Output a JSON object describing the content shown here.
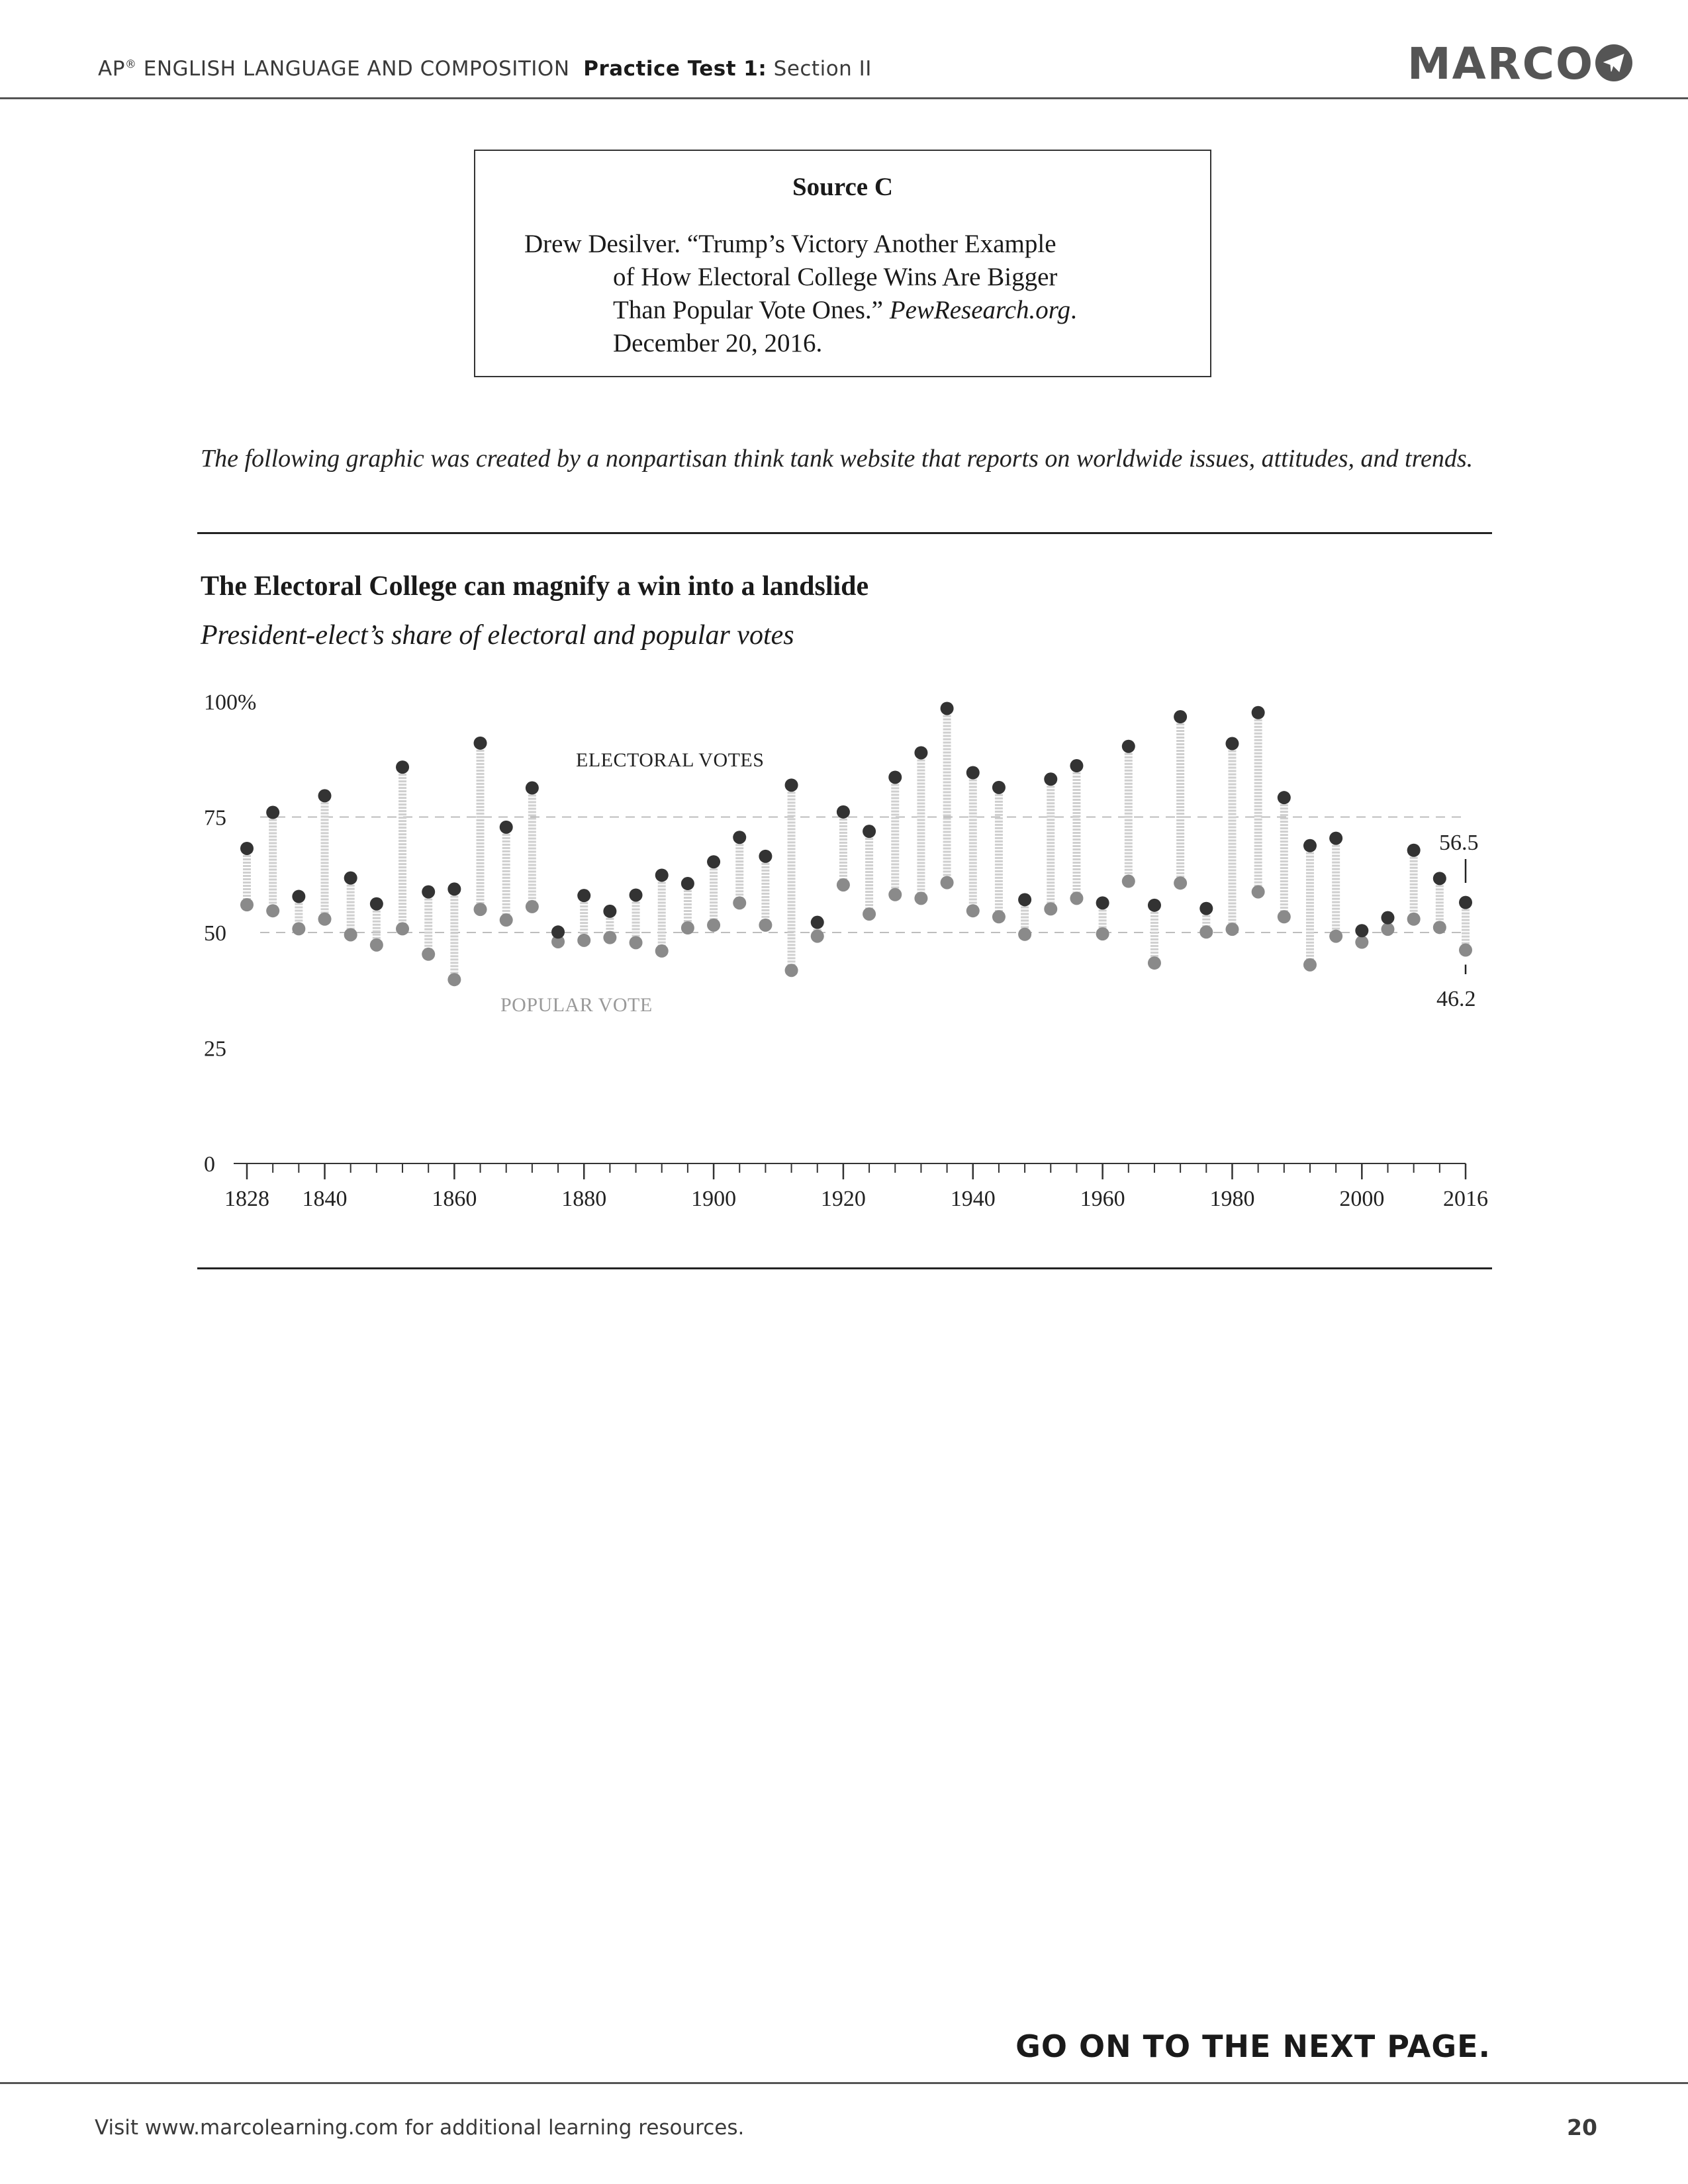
{
  "header": {
    "course_prefix": "AP",
    "registered_mark": "®",
    "course_rest": " ENGLISH LANGUAGE AND COMPOSITION",
    "test_label": "Practice Test 1:",
    "section": " Section II",
    "logo": "MARCO",
    "logo_icon": "paper-plane-icon"
  },
  "source": {
    "title": "Source C",
    "line1": "Drew Desilver. “Trump’s Victory Another Example",
    "line2": "of How Electoral College Wins Are Bigger",
    "line3_plain": "Than Popular Vote Ones.” ",
    "line3_italic": "PewResearch.org",
    "line3_end": ".",
    "line4": "December 20, 2016."
  },
  "intro": "The following graphic was created by a nonpartisan think tank website that reports on worldwide issues, attitudes, and trends.",
  "chart_data": {
    "type": "scatter",
    "title": "The Electoral College can magnify a win into a landslide",
    "subtitle": "President-elect’s share of electoral and popular votes",
    "y_tick_labels": [
      "100%",
      "75",
      "50",
      "25",
      "0"
    ],
    "y_ticks": [
      100,
      75,
      50,
      25,
      0
    ],
    "x_tick_labels": [
      "1828",
      "1840",
      "1860",
      "1880",
      "1900",
      "1920",
      "1940",
      "1960",
      "1980",
      "2000",
      "2016"
    ],
    "x_ticks": [
      1828,
      1840,
      1860,
      1880,
      1900,
      1920,
      1940,
      1960,
      1980,
      2000,
      2016
    ],
    "ylim": [
      0,
      100
    ],
    "xlim": [
      1828,
      2016
    ],
    "reference_lines": [
      75,
      50
    ],
    "series_labels": [
      "ELECTORAL VOTES",
      "POPULAR VOTE"
    ],
    "annotations": [
      "56.5",
      "46.2"
    ],
    "colors": {
      "electoral": "#333333",
      "popular": "#8a8a8a",
      "connector": "#cfcfcf"
    },
    "years": [
      1828,
      1832,
      1836,
      1840,
      1844,
      1848,
      1852,
      1856,
      1860,
      1864,
      1868,
      1872,
      1876,
      1880,
      1884,
      1888,
      1892,
      1896,
      1900,
      1904,
      1908,
      1912,
      1916,
      1920,
      1924,
      1928,
      1932,
      1936,
      1940,
      1944,
      1948,
      1952,
      1956,
      1960,
      1964,
      1968,
      1972,
      1976,
      1980,
      1984,
      1988,
      1992,
      1996,
      2000,
      2004,
      2008,
      2012,
      2016
    ],
    "series": [
      {
        "name": "ELECTORAL VOTES",
        "values": [
          68.2,
          76.0,
          57.8,
          79.6,
          61.8,
          56.2,
          85.8,
          58.8,
          59.4,
          91.0,
          72.8,
          81.3,
          50.1,
          58.0,
          54.6,
          58.1,
          62.4,
          60.6,
          65.3,
          70.6,
          66.5,
          81.9,
          52.2,
          76.1,
          71.9,
          83.6,
          88.9,
          98.5,
          84.6,
          81.4,
          57.1,
          83.2,
          86.1,
          56.4,
          90.3,
          55.9,
          96.7,
          55.2,
          90.9,
          97.6,
          79.2,
          68.8,
          70.4,
          50.4,
          53.2,
          67.8,
          61.7,
          56.5
        ]
      },
      {
        "name": "POPULAR VOTE",
        "values": [
          56.0,
          54.7,
          50.8,
          52.9,
          49.5,
          47.3,
          50.8,
          45.3,
          39.8,
          55.0,
          52.7,
          55.6,
          48.0,
          48.3,
          48.9,
          47.8,
          46.0,
          51.0,
          51.6,
          56.4,
          51.6,
          41.8,
          49.2,
          60.3,
          54.0,
          58.2,
          57.4,
          60.8,
          54.7,
          53.4,
          49.6,
          55.1,
          57.4,
          49.7,
          61.1,
          43.4,
          60.7,
          50.1,
          50.7,
          58.8,
          53.4,
          43.0,
          49.2,
          47.9,
          50.7,
          52.9,
          51.1,
          46.2
        ]
      }
    ]
  },
  "footer": {
    "next_page": "GO ON TO THE NEXT PAGE.",
    "visit_prefix": "Visit ",
    "url": "www.marcolearning.com",
    "visit_suffix": " for additional learning resources.",
    "page_number": "20"
  }
}
